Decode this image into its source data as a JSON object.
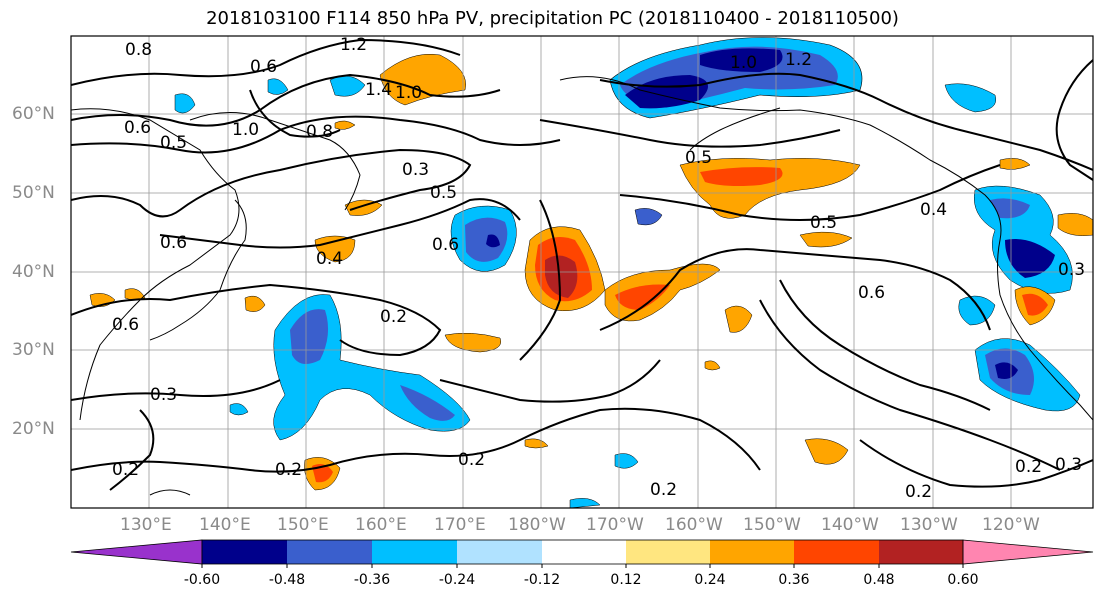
{
  "title": "2018103100 F114 850 hPa PV, precipitation PC (2018110400 - 2018110500)",
  "lat_labels": [
    "60°N",
    "50°N",
    "40°N",
    "30°N",
    "20°N"
  ],
  "lon_labels": [
    "130°E",
    "140°E",
    "150°E",
    "160°E",
    "170°E",
    "180°W",
    "170°W",
    "160°W",
    "150°W",
    "140°W",
    "130°W",
    "120°W"
  ],
  "colorbar": {
    "ticks": [
      "-0.60",
      "-0.48",
      "-0.36",
      "-0.24",
      "-0.12",
      "0.12",
      "0.24",
      "0.36",
      "0.48",
      "0.60"
    ],
    "colors": [
      "#9932cc",
      "#00008b",
      "#3a5fcd",
      "#00bfff",
      "#b0e2ff",
      "#ffffff",
      "#ffe680",
      "#ffa500",
      "#ff4500",
      "#b22222",
      "#ff85b0"
    ]
  },
  "contour_labels": [
    "0.8",
    "0.6",
    "1.2",
    "1.0",
    "1.4",
    "0.6",
    "0.5",
    "1.0",
    "0.8",
    "0.3",
    "0.5",
    "0.6",
    "0.4",
    "0.6",
    "0.2",
    "0.3",
    "0.2",
    "0.2",
    "0.2",
    "0.6",
    "0.5",
    "0.5",
    "0.4",
    "0.2",
    "0.2",
    "0.3",
    "0.2",
    "1.0",
    "1.2",
    "0.6",
    "0.3"
  ],
  "map": {
    "projection": "PlateCarree",
    "lon_range": [
      "120°E",
      "112°W"
    ],
    "lat_range": [
      "10°N",
      "70°N"
    ],
    "land_color": "#ffffff",
    "coastline_color": "#000000",
    "grid_color": "#999999"
  }
}
